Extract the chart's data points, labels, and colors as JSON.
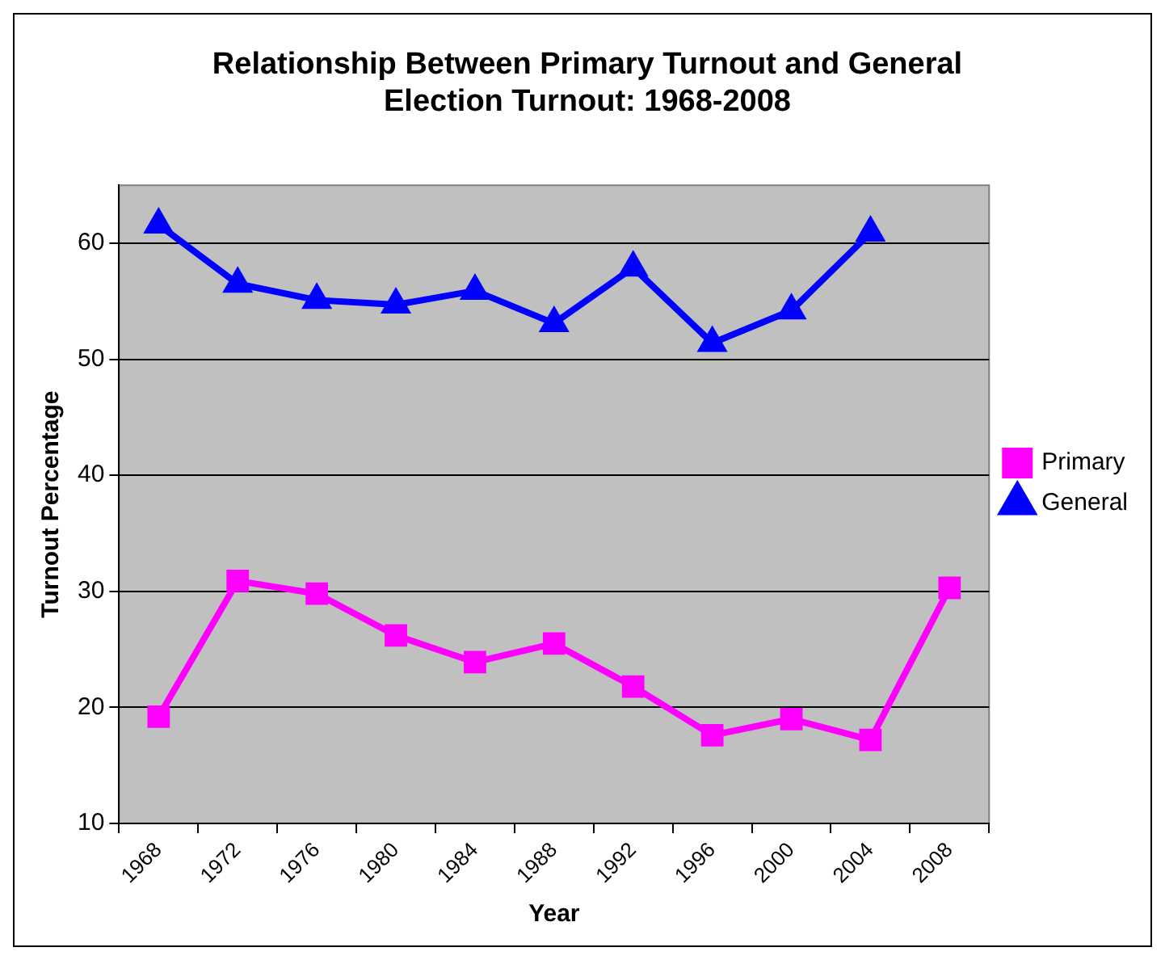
{
  "chart_data": {
    "type": "line",
    "title": "Relationship Between Primary Turnout and General Election Turnout: 1968-2008",
    "xlabel": "Year",
    "ylabel": "Turnout Percentage",
    "categories": [
      "1968",
      "1972",
      "1976",
      "1980",
      "1984",
      "1988",
      "1992",
      "1996",
      "2000",
      "2004",
      "2008"
    ],
    "series": [
      {
        "name": "Primary",
        "color": "#ff00ff",
        "marker": "square",
        "values": [
          19.2,
          30.9,
          29.8,
          26.2,
          23.9,
          25.5,
          21.8,
          17.6,
          19.0,
          17.2,
          30.3
        ]
      },
      {
        "name": "General",
        "color": "#0000ff",
        "marker": "triangle",
        "values": [
          61.6,
          56.5,
          55.1,
          54.7,
          55.9,
          53.1,
          57.9,
          51.4,
          54.2,
          60.9,
          null
        ]
      }
    ],
    "ylim": [
      10,
      65
    ],
    "yticks": [
      10,
      20,
      30,
      40,
      50,
      60
    ],
    "grid": "y",
    "legend": "right",
    "line_style": "solid"
  }
}
